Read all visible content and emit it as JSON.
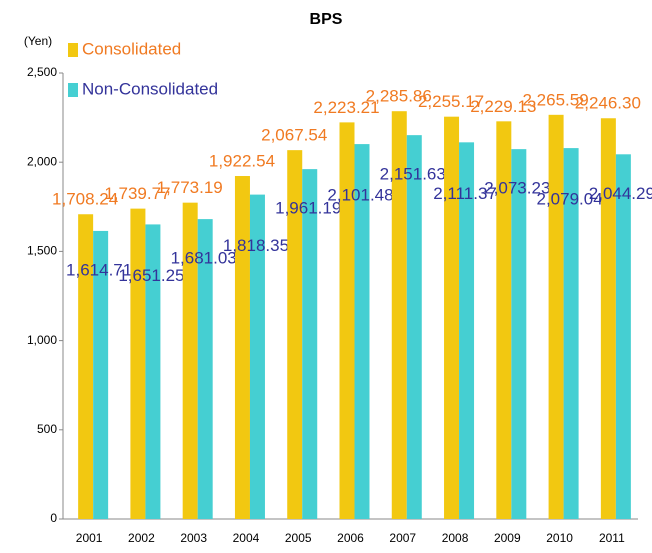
{
  "chart_data": {
    "type": "bar",
    "title": "BPS",
    "y_label": "(Yen)",
    "categories": [
      "2001",
      "2002",
      "2003",
      "2004",
      "2005",
      "2006",
      "2007",
      "2008",
      "2009",
      "2010",
      "2011"
    ],
    "series": [
      {
        "name": "Consolidated",
        "color": "#f2c811",
        "label_color": "#f07a22",
        "values": [
          1708.24,
          1739.77,
          1773.19,
          1922.54,
          2067.54,
          2223.21,
          2285.86,
          2255.17,
          2229.13,
          2265.59,
          2246.3
        ],
        "value_labels": [
          "1,708.24",
          "1,739.77",
          "1,773.19",
          "1,922.54",
          "2,067.54",
          "2,223.21",
          "2,285.86",
          "2,255.17",
          "2,229.13",
          "2,265.59",
          "2,246.30"
        ]
      },
      {
        "name": "Non-Consolidated",
        "color": "#45cfd2",
        "label_color": "#33339a",
        "values": [
          1614.71,
          1651.25,
          1681.03,
          1818.35,
          1961.19,
          2101.48,
          2151.63,
          2111.37,
          2073.23,
          2079.04,
          2044.29
        ],
        "value_labels": [
          "1,614.71",
          "1,651.25",
          "1,681.03",
          "1,818.35",
          "1,961.19",
          "2,101.48",
          "2,151.63",
          "2,111.37",
          "2,073.23",
          "2,079.04",
          "2,044.29"
        ]
      }
    ],
    "ylim": [
      0,
      2500
    ],
    "yticks": [
      0,
      500,
      {
        "value": 1000,
        "label": "1,000"
      },
      {
        "value": 1500,
        "label": "1,500"
      },
      {
        "value": 2000,
        "label": "2,000"
      },
      {
        "value": 2500,
        "label": "2,500"
      }
    ],
    "legend": "upper left"
  }
}
